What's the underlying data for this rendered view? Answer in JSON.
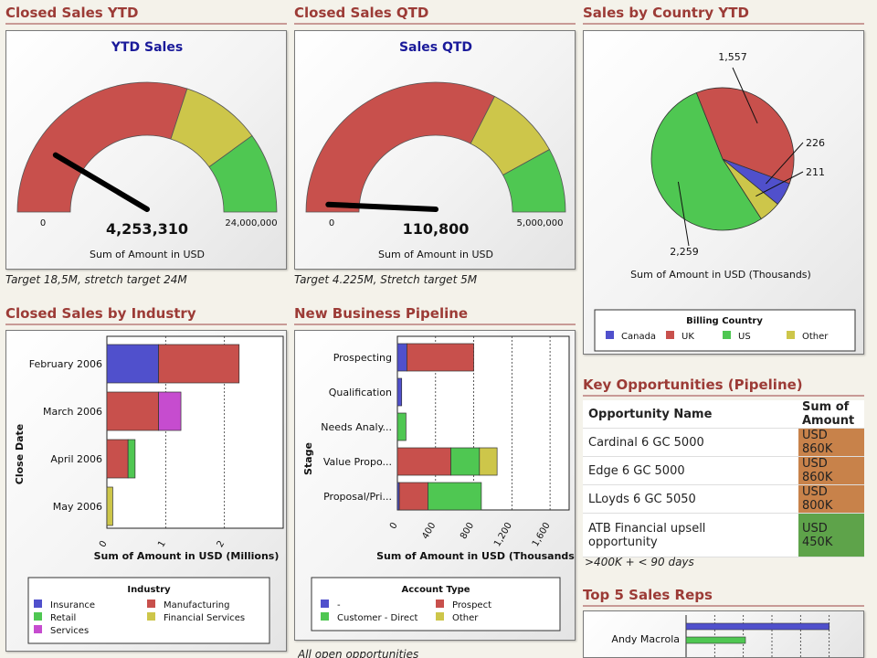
{
  "colors": {
    "title": "#9c3b36",
    "red": "#c8504c",
    "yellow": "#cdc64a",
    "green": "#4fc752",
    "blue": "#5050cc",
    "magenta": "#c64ccf",
    "amount_orange": "#c8824a",
    "amount_green": "#5ea34a"
  },
  "sections": {
    "ytd": "Closed Sales YTD",
    "qtd": "Closed Sales QTD",
    "country": "Sales by Country YTD",
    "industry": "Closed Sales by Industry",
    "pipeline": "New Business Pipeline",
    "key_opps": "Key Opportunities (Pipeline)",
    "top_reps": "Top 5 Sales Reps"
  },
  "gauge_ytd": {
    "title": "YTD Sales",
    "min_label": "0",
    "max_label": "24,000,000",
    "value_label": "4,253,310",
    "axis_label": "Sum of Amount in USD",
    "caption": "Target 18,5M, stretch target 24M",
    "value": 4253310,
    "max": 24000000,
    "bands": [
      {
        "from": 0,
        "to": 0.6,
        "color": "red"
      },
      {
        "from": 0.6,
        "to": 0.8,
        "color": "yellow"
      },
      {
        "from": 0.8,
        "to": 1.0,
        "color": "green"
      }
    ]
  },
  "gauge_qtd": {
    "title": "Sales QTD",
    "min_label": "0",
    "max_label": "5,000,000",
    "value_label": "110,800",
    "axis_label": "Sum of Amount in USD",
    "caption": "Target 4.225M, Stretch target 5M",
    "value": 110800,
    "max": 5000000,
    "bands": [
      {
        "from": 0,
        "to": 0.65,
        "color": "red"
      },
      {
        "from": 0.65,
        "to": 0.84,
        "color": "yellow"
      },
      {
        "from": 0.84,
        "to": 1.0,
        "color": "green"
      }
    ]
  },
  "chart_data": [
    {
      "type": "pie",
      "name": "country",
      "slices": [
        {
          "label": "Canada",
          "value": 226,
          "color": "blue"
        },
        {
          "label": "UK",
          "value": 1557,
          "color": "red"
        },
        {
          "label": "US",
          "value": 2259,
          "color": "green"
        },
        {
          "label": "Other",
          "value": 211,
          "color": "yellow"
        }
      ],
      "value_labels": [
        "1,557",
        "226",
        "211",
        "2,259"
      ],
      "xlabel": "Sum of Amount in USD (Thousands)",
      "legend_title": "Billing Country",
      "legend": [
        "Canada",
        "UK",
        "US",
        "Other"
      ]
    },
    {
      "type": "bar",
      "name": "industry",
      "orientation": "horizontal",
      "stacked": true,
      "categories": [
        "February 2006",
        "March 2006",
        "April 2006",
        "May 2006"
      ],
      "series": [
        {
          "name": "Insurance",
          "color": "blue",
          "values": [
            0.88,
            0,
            0,
            0
          ]
        },
        {
          "name": "Manufacturing",
          "color": "red",
          "values": [
            1.37,
            0.88,
            0.36,
            0
          ]
        },
        {
          "name": "Services",
          "color": "magenta",
          "values": [
            0,
            0.38,
            0,
            0
          ]
        },
        {
          "name": "Retail",
          "color": "green",
          "values": [
            0,
            0,
            0.12,
            0
          ]
        },
        {
          "name": "Financial Services",
          "color": "yellow",
          "values": [
            0,
            0,
            0,
            0.1
          ]
        }
      ],
      "xlabel": "Sum of Amount in USD (Millions)",
      "ylabel": "Close Date",
      "xticks": [
        "0",
        "1",
        "2"
      ],
      "xlim": [
        0,
        3
      ],
      "legend_title": "Industry",
      "legend": [
        "Insurance",
        "Manufacturing",
        "Retail",
        "Financial Services",
        "Services"
      ]
    },
    {
      "type": "bar",
      "name": "pipeline",
      "orientation": "horizontal",
      "stacked": true,
      "categories": [
        "Prospecting",
        "Qualification",
        "Needs Analy...",
        "Value Propo...",
        "Proposal/Pri..."
      ],
      "series": [
        {
          "name": "-",
          "color": "blue",
          "values": [
            100,
            45,
            0,
            0,
            20
          ]
        },
        {
          "name": "Prospect",
          "color": "red",
          "values": [
            700,
            0,
            0,
            560,
            300
          ]
        },
        {
          "name": "Customer - Direct",
          "color": "green",
          "values": [
            0,
            0,
            90,
            300,
            560
          ]
        },
        {
          "name": "Other",
          "color": "yellow",
          "values": [
            0,
            0,
            0,
            185,
            0
          ]
        }
      ],
      "xlabel": "Sum of Amount in USD (Thousands)",
      "ylabel": "Stage",
      "xticks": [
        "0",
        "400",
        "800",
        "1,200",
        "1,600"
      ],
      "xlim": [
        0,
        1800
      ],
      "legend_title": "Account Type",
      "legend": [
        "-",
        "Prospect",
        "Customer - Direct",
        "Other"
      ]
    },
    {
      "type": "bar",
      "name": "top_reps",
      "orientation": "horizontal",
      "categories": [
        "Andy Macrola"
      ],
      "series": [
        {
          "color": "blue",
          "values": [
            1000
          ]
        },
        {
          "color": "green",
          "values": [
            415
          ]
        }
      ],
      "xlim": [
        0,
        1200
      ]
    }
  ],
  "key_opps": {
    "col_name": "Opportunity Name",
    "col_amount": "Sum of Amount",
    "rows": [
      {
        "name": "Cardinal 6 GC 5000",
        "amount": "USD 860K",
        "color": "amount_orange"
      },
      {
        "name": "Edge 6 GC 5000",
        "amount": "USD 860K",
        "color": "amount_orange"
      },
      {
        "name": "LLoyds 6 GC 5050",
        "amount": "USD 800K",
        "color": "amount_orange"
      },
      {
        "name": "ATB Financial upsell",
        "name2": "opportunity",
        "amount": "USD 450K",
        "color": "amount_green"
      }
    ],
    "caption": ">400K + < 90 days"
  },
  "pipeline_caption": "All open opportunities"
}
